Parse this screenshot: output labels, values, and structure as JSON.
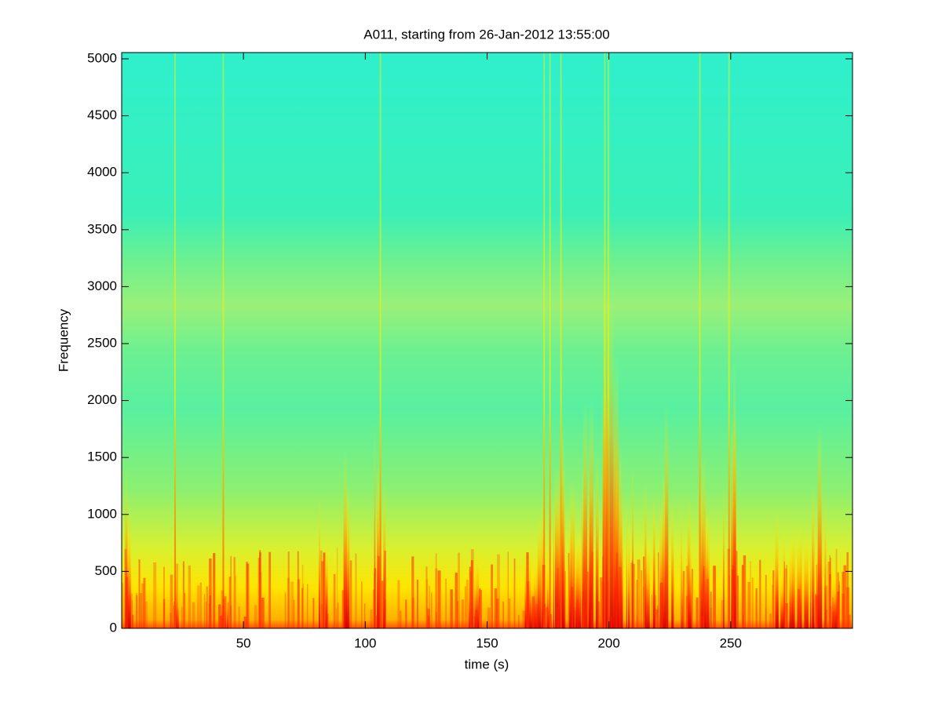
{
  "chart_data": {
    "type": "spectrogram",
    "title": "A011, starting from 26-Jan-2012 13:55:00",
    "x_label": "time (s)",
    "y_label": "Frequency",
    "xlim": [
      0,
      300
    ],
    "xticks": [
      50,
      100,
      150,
      200,
      250
    ],
    "ylim": [
      0,
      5055
    ],
    "yticks": [
      0,
      500,
      1000,
      1500,
      2000,
      2500,
      3000,
      3500,
      4000,
      4500,
      5000
    ],
    "colormap": "jet"
  }
}
